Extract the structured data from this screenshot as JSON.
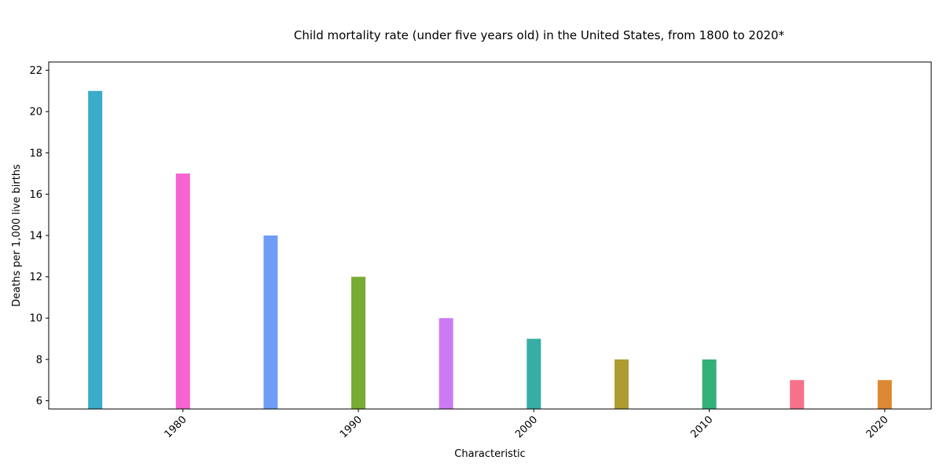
{
  "chart_data": {
    "type": "bar",
    "title": "Child mortality rate (under five years old) in the United States, from 1800 to 2020*",
    "xlabel": "Characteristic",
    "ylabel": "Deaths per 1,000 live births",
    "x": [
      1975,
      1980,
      1985,
      1990,
      1995,
      2000,
      2005,
      2010,
      2015,
      2020
    ],
    "values": [
      21,
      17,
      14,
      12,
      10,
      9,
      8,
      8,
      7,
      7
    ],
    "colors": [
      "#3aabc9",
      "#f564d1",
      "#6f9cf6",
      "#77ab32",
      "#cc7af4",
      "#36ada5",
      "#ae9c31",
      "#33b078",
      "#f77189",
      "#dc8932"
    ],
    "ylim": [
      5.6,
      22.4
    ],
    "yticks": [
      6,
      8,
      10,
      12,
      14,
      16,
      18,
      20,
      22
    ],
    "xticks": [
      1980,
      1990,
      2000,
      2010,
      2020
    ],
    "grid": false,
    "legend": "none"
  }
}
